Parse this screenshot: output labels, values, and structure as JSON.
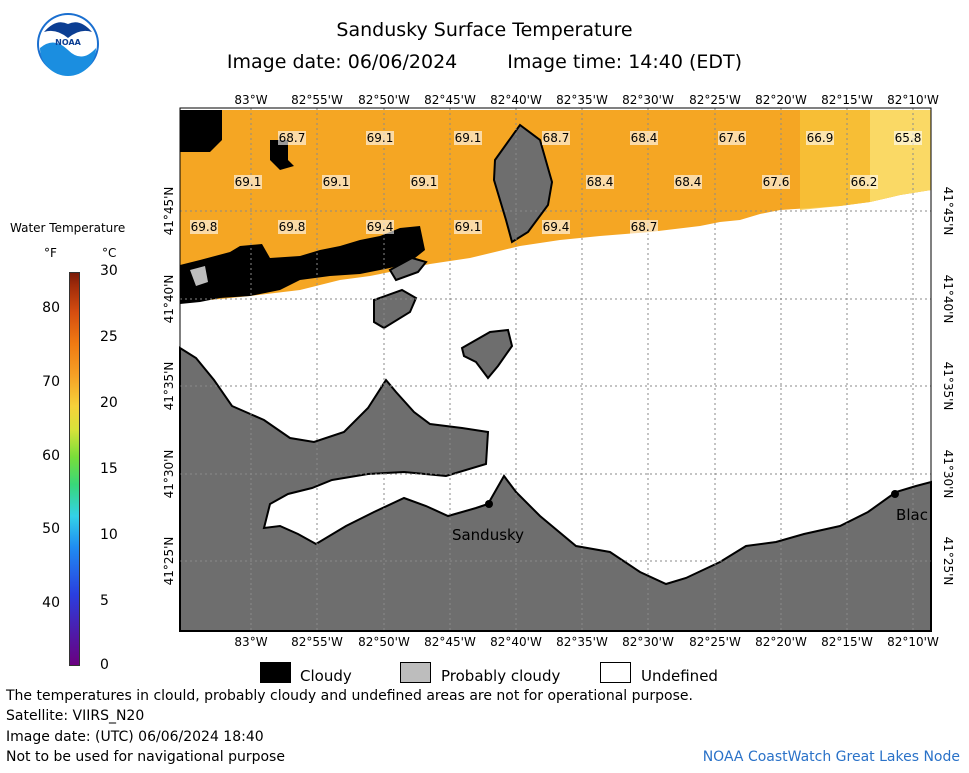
{
  "header": {
    "title": "Sandusky Surface Temperature",
    "image_date": "Image date: 06/06/2024",
    "image_time": "Image time: 14:40 (EDT)"
  },
  "logo": {
    "text": "NOAA"
  },
  "map": {
    "lon_labels": [
      "83°W",
      "82°55'W",
      "82°50'W",
      "82°45'W",
      "82°40'W",
      "82°35'W",
      "82°30'W",
      "82°25'W",
      "82°20'W",
      "82°15'W",
      "82°10'W"
    ],
    "lat_labels": [
      "41°45'N",
      "41°40'N",
      "41°35'N",
      "41°30'N",
      "41°25'N"
    ],
    "temp_labels": [
      "68.7",
      "69.1",
      "69.1",
      "68.7",
      "68.4",
      "67.6",
      "66.9",
      "65.8",
      "69.1",
      "69.1",
      "69.1",
      "68.4",
      "68.4",
      "67.6",
      "66.2",
      "69.8",
      "69.8",
      "69.4",
      "69.1",
      "69.4",
      "68.7"
    ],
    "places": [
      "Sandusky",
      "Blac"
    ],
    "colors": {
      "water": "#f5a623",
      "land": "#6e6e6e",
      "cloudy": "#000000",
      "probably_cloudy": "#bdbdbd",
      "undefined": "#ffffff"
    }
  },
  "scale": {
    "title": "Water Temperature",
    "unit_f": "°F",
    "unit_c": "°C",
    "f_ticks": [
      "80",
      "70",
      "60",
      "50",
      "40"
    ],
    "c_ticks": [
      "30",
      "25",
      "20",
      "15",
      "10",
      "5",
      "0"
    ]
  },
  "legend": {
    "cloudy": "Cloudy",
    "probably_cloudy": "Probably cloudy",
    "undefined": "Undefined"
  },
  "notes": {
    "line1": "The temperatures in clould, probably cloudy and undefined areas are not for operational purpose.",
    "line2": "Satellite: VIIRS_N20",
    "line3": "Image date: (UTC) 06/06/2024  18:40",
    "line4": "Not to be used for navigational purpose"
  },
  "credit": "NOAA CoastWatch Great Lakes Node"
}
